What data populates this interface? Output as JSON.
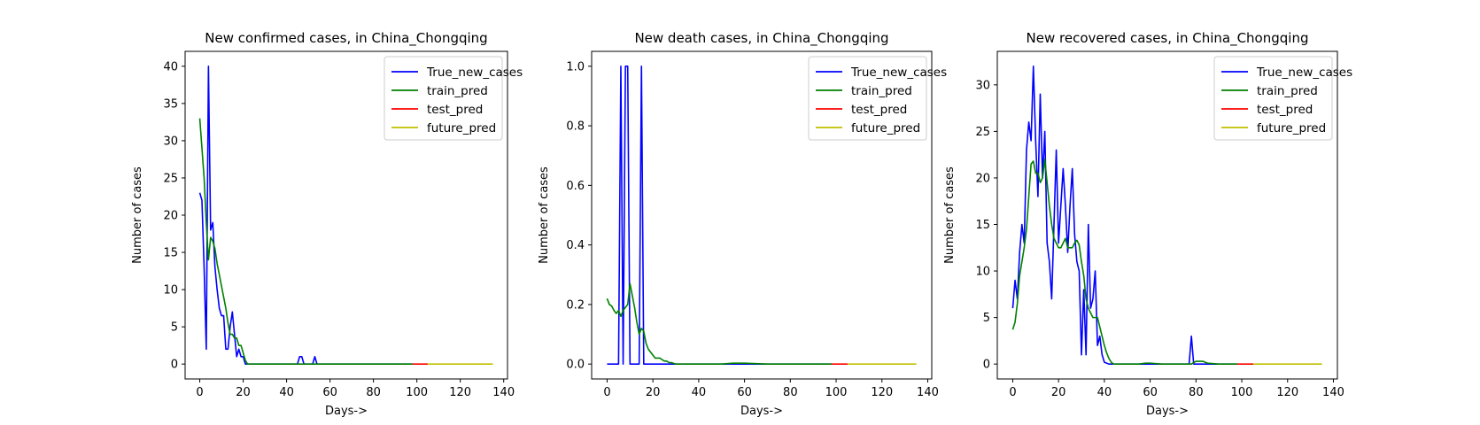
{
  "colors": {
    "true_new_cases": "#0000ff",
    "train_pred": "#008000",
    "test_pred": "#ff0000",
    "future_pred": "#bfbf00",
    "axes": "#000000",
    "background": "#ffffff"
  },
  "chart_data": [
    {
      "type": "line",
      "title": "New confirmed cases, in China_Chongqing",
      "xlabel": "Days->",
      "ylabel": "Number of cases",
      "xlim": [
        -6.75,
        141.75
      ],
      "ylim": [
        -2,
        42
      ],
      "xticks": [
        0,
        20,
        40,
        60,
        80,
        100,
        120,
        140
      ],
      "xtick_labels": [
        "0",
        "20",
        "40",
        "60",
        "80",
        "100",
        "120",
        "140"
      ],
      "yticks": [
        0,
        5,
        10,
        15,
        20,
        25,
        30,
        35,
        40
      ],
      "ytick_labels": [
        "0",
        "5",
        "10",
        "15",
        "20",
        "25",
        "30",
        "35",
        "40"
      ],
      "grid": false,
      "legend": "top-right",
      "series": [
        {
          "name": "True_new_cases",
          "x": [
            0,
            1,
            2,
            3,
            4,
            5,
            6,
            7,
            8,
            9,
            10,
            11,
            12,
            13,
            14,
            15,
            16,
            17,
            18,
            19,
            20,
            21,
            22,
            25,
            30,
            35,
            40,
            44,
            45,
            46,
            47,
            48,
            49,
            50,
            51,
            52,
            53,
            54,
            55,
            60,
            70,
            80,
            90,
            98
          ],
          "y": [
            23,
            22,
            13,
            2,
            40,
            18,
            19,
            13,
            10,
            7.5,
            6.5,
            6.5,
            2,
            2,
            5,
            7,
            4,
            1,
            2,
            1,
            1,
            0,
            0,
            0,
            0,
            0,
            0,
            0,
            0,
            1,
            1,
            0,
            0,
            0,
            0,
            0,
            1,
            0,
            0,
            0,
            0,
            0,
            0,
            0
          ]
        },
        {
          "name": "train_pred",
          "x": [
            0,
            1,
            2,
            3,
            4,
            5,
            6,
            7,
            8,
            9,
            10,
            11,
            12,
            13,
            14,
            15,
            16,
            17,
            18,
            19,
            20,
            21,
            22,
            25,
            30,
            40,
            50,
            60,
            70,
            80,
            90,
            98
          ],
          "y": [
            33,
            29,
            25,
            19,
            14,
            17,
            16.5,
            15.5,
            13.5,
            12,
            10.5,
            9,
            7.5,
            5.5,
            4,
            4,
            3.5,
            3.5,
            2.5,
            2.5,
            1.5,
            0.5,
            0,
            0,
            0,
            0,
            0,
            0,
            0,
            0,
            0,
            0
          ]
        },
        {
          "name": "test_pred",
          "x": [
            98,
            105
          ],
          "y": [
            0,
            0
          ]
        },
        {
          "name": "future_pred",
          "x": [
            105,
            135
          ],
          "y": [
            0,
            0
          ]
        }
      ]
    },
    {
      "type": "line",
      "title": "New death cases, in China_Chongqing",
      "xlabel": "Days->",
      "ylabel": "Number of cases",
      "xlim": [
        -6.75,
        141.75
      ],
      "ylim": [
        -0.05,
        1.05
      ],
      "xticks": [
        0,
        20,
        40,
        60,
        80,
        100,
        120,
        140
      ],
      "xtick_labels": [
        "0",
        "20",
        "40",
        "60",
        "80",
        "100",
        "120",
        "140"
      ],
      "yticks": [
        0,
        0.2,
        0.4,
        0.6,
        0.8,
        1.0
      ],
      "ytick_labels": [
        "0.0",
        "0.2",
        "0.4",
        "0.6",
        "0.8",
        "1.0"
      ],
      "grid": false,
      "legend": "top-right",
      "series": [
        {
          "name": "True_new_cases",
          "x": [
            0,
            1,
            2,
            3,
            4,
            5,
            6,
            7,
            8,
            9,
            10,
            11,
            12,
            13,
            14,
            15,
            16,
            17,
            20,
            30,
            40,
            60,
            80,
            98
          ],
          "y": [
            0,
            0,
            0,
            0,
            0,
            0,
            1,
            0,
            1,
            1,
            0,
            0,
            0,
            0,
            0,
            1,
            0,
            0,
            0,
            0,
            0,
            0,
            0,
            0
          ]
        },
        {
          "name": "train_pred",
          "x": [
            0,
            1,
            2,
            3,
            4,
            5,
            6,
            7,
            8,
            9,
            10,
            11,
            12,
            13,
            14,
            15,
            16,
            17,
            18,
            19,
            20,
            21,
            22,
            23,
            24,
            25,
            26,
            27,
            28,
            30,
            35,
            40,
            50,
            55,
            60,
            70,
            80,
            90,
            98
          ],
          "y": [
            0.22,
            0.2,
            0.195,
            0.18,
            0.17,
            0.18,
            0.16,
            0.18,
            0.19,
            0.2,
            0.27,
            0.23,
            0.19,
            0.14,
            0.1,
            0.12,
            0.11,
            0.07,
            0.05,
            0.04,
            0.03,
            0.02,
            0.02,
            0.02,
            0.015,
            0.01,
            0.01,
            0.005,
            0.005,
            0,
            0,
            0,
            0,
            0.003,
            0.003,
            0,
            0,
            0,
            0
          ]
        },
        {
          "name": "test_pred",
          "x": [
            98,
            105
          ],
          "y": [
            0,
            0
          ]
        },
        {
          "name": "future_pred",
          "x": [
            105,
            135
          ],
          "y": [
            0,
            0
          ]
        }
      ]
    },
    {
      "type": "line",
      "title": "New recovered cases, in China_Chongqing",
      "xlabel": "Days->",
      "ylabel": "Number of cases",
      "xlim": [
        -6.75,
        141.75
      ],
      "ylim": [
        -1.6,
        33.6
      ],
      "xticks": [
        0,
        20,
        40,
        60,
        80,
        100,
        120,
        140
      ],
      "xtick_labels": [
        "0",
        "20",
        "40",
        "60",
        "80",
        "100",
        "120",
        "140"
      ],
      "yticks": [
        0,
        5,
        10,
        15,
        20,
        25,
        30
      ],
      "ytick_labels": [
        "0",
        "5",
        "10",
        "15",
        "20",
        "25",
        "30"
      ],
      "grid": false,
      "legend": "top-right",
      "series": [
        {
          "name": "True_new_cases",
          "x": [
            0,
            1,
            2,
            3,
            4,
            5,
            6,
            7,
            8,
            9,
            10,
            11,
            12,
            13,
            14,
            15,
            16,
            17,
            18,
            19,
            20,
            21,
            22,
            23,
            24,
            25,
            26,
            27,
            28,
            29,
            30,
            31,
            32,
            33,
            34,
            35,
            36,
            37,
            38,
            39,
            40,
            42,
            45,
            50,
            60,
            70,
            75,
            76,
            77,
            78,
            79,
            80,
            85,
            90,
            98
          ],
          "y": [
            6,
            9,
            7,
            12,
            15,
            13,
            23,
            26,
            24,
            32,
            24,
            18,
            29,
            20,
            25,
            13,
            11,
            7,
            15,
            23,
            13,
            17,
            21,
            17,
            12,
            17,
            21,
            14,
            11,
            10,
            1,
            8,
            1,
            15,
            6,
            7,
            10,
            2,
            3,
            1,
            0.2,
            0,
            0,
            0,
            0,
            0,
            0,
            0,
            0,
            3,
            0,
            0,
            0,
            0,
            0
          ]
        },
        {
          "name": "train_pred",
          "x": [
            0,
            1,
            2,
            3,
            4,
            5,
            6,
            7,
            8,
            9,
            10,
            11,
            12,
            13,
            14,
            15,
            16,
            17,
            18,
            19,
            20,
            21,
            22,
            23,
            24,
            25,
            26,
            27,
            28,
            29,
            30,
            31,
            32,
            33,
            34,
            35,
            36,
            37,
            38,
            39,
            40,
            41,
            42,
            43,
            44,
            45,
            50,
            55,
            58,
            60,
            65,
            70,
            75,
            78,
            80,
            83,
            85,
            90,
            98
          ],
          "y": [
            3.7,
            4.5,
            6.5,
            9.5,
            11,
            12.5,
            14.5,
            18,
            21.5,
            21.8,
            20.5,
            20.5,
            19.5,
            20,
            22,
            19.5,
            17,
            15,
            13.5,
            13,
            12.5,
            12.5,
            13,
            13.5,
            12.5,
            12.5,
            12.5,
            13,
            13.3,
            12.8,
            11,
            9.5,
            7,
            6,
            5.5,
            5,
            5,
            5,
            4,
            3,
            2,
            1.2,
            0.6,
            0.2,
            0,
            0,
            0,
            0,
            0.1,
            0.1,
            0,
            0,
            0,
            0,
            0.3,
            0.3,
            0.1,
            0,
            0
          ]
        },
        {
          "name": "test_pred",
          "x": [
            98,
            105
          ],
          "y": [
            0,
            0
          ]
        },
        {
          "name": "future_pred",
          "x": [
            105,
            135
          ],
          "y": [
            0,
            0
          ]
        }
      ]
    }
  ]
}
